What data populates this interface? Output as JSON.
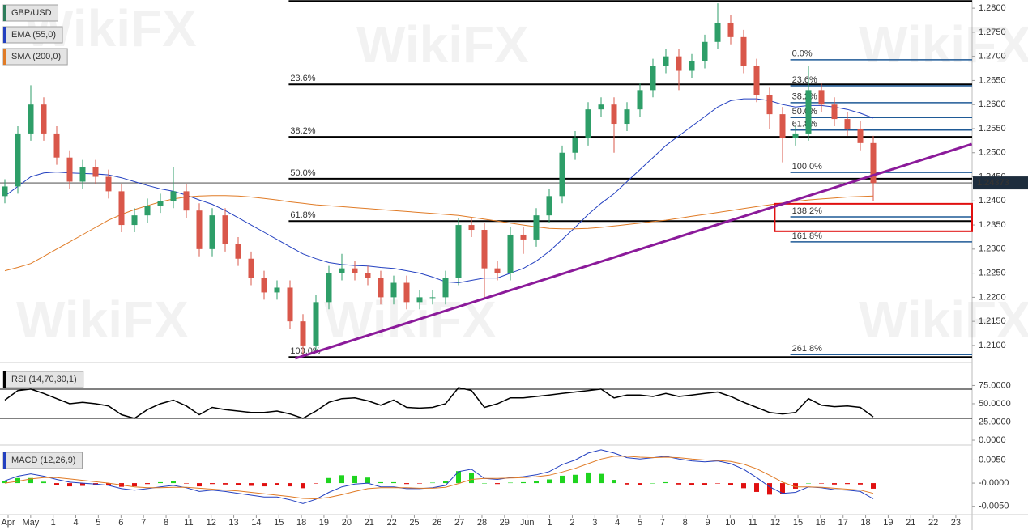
{
  "chart_data": [
    {
      "type": "candlestick",
      "title": "GBP/USD",
      "color": "#2e7d5b",
      "watermark": "WikiFX",
      "up_color": "#2e9e68",
      "down_color": "#d9574a",
      "open": [
        1.241,
        1.243,
        1.254,
        1.26,
        1.254,
        1.249,
        1.244,
        1.247,
        1.245,
        1.242,
        1.235,
        1.237,
        1.239,
        1.24,
        1.242,
        1.238,
        1.23,
        1.237,
        1.231,
        1.228,
        1.224,
        1.221,
        1.222,
        1.215,
        1.21,
        1.219,
        1.225,
        1.226,
        1.225,
        1.224,
        1.22,
        1.223,
        1.219,
        1.22,
        1.22,
        1.224,
        1.235,
        1.234,
        1.226,
        1.225,
        1.233,
        1.232,
        1.237,
        1.241,
        1.25,
        1.253,
        1.259,
        1.26,
        1.256,
        1.259,
        1.263,
        1.268,
        1.27,
        1.267,
        1.269,
        1.273,
        1.277,
        1.274,
        1.268,
        1.262,
        1.258,
        1.253,
        1.254,
        1.263,
        1.26,
        1.257,
        1.255,
        1.252
      ],
      "high": [
        1.2445,
        1.2555,
        1.264,
        1.2615,
        1.2555,
        1.2505,
        1.2485,
        1.2485,
        1.2465,
        1.2435,
        1.2385,
        1.2405,
        1.2415,
        1.247,
        1.2435,
        1.2395,
        1.2385,
        1.2385,
        1.2325,
        1.2295,
        1.2255,
        1.2235,
        1.2235,
        1.2165,
        1.2205,
        1.2265,
        1.229,
        1.2275,
        1.2265,
        1.2255,
        1.2245,
        1.2245,
        1.2215,
        1.2215,
        1.2255,
        1.2365,
        1.2365,
        1.2355,
        1.2275,
        1.2345,
        1.2345,
        1.2385,
        1.2425,
        1.2515,
        1.2545,
        1.2605,
        1.2615,
        1.2615,
        1.2605,
        1.2645,
        1.2695,
        1.2715,
        1.2715,
        1.2705,
        1.2745,
        1.281,
        1.2785,
        1.2755,
        1.2695,
        1.2635,
        1.2595,
        1.2555,
        1.268,
        1.2645,
        1.2615,
        1.2585,
        1.2565,
        1.2535
      ],
      "low": [
        1.2395,
        1.2415,
        1.2525,
        1.2525,
        1.2475,
        1.2425,
        1.2425,
        1.2435,
        1.2405,
        1.2335,
        1.2335,
        1.2355,
        1.2375,
        1.2385,
        1.2365,
        1.2285,
        1.2285,
        1.2295,
        1.2265,
        1.2225,
        1.2195,
        1.2195,
        1.2135,
        1.208,
        1.2085,
        1.2175,
        1.2235,
        1.2235,
        1.2225,
        1.2185,
        1.2185,
        1.2175,
        1.2175,
        1.2185,
        1.2185,
        1.2225,
        1.2325,
        1.22,
        1.2235,
        1.2235,
        1.229,
        1.2305,
        1.2355,
        1.2395,
        1.2485,
        1.2515,
        1.2575,
        1.25,
        1.2545,
        1.2575,
        1.2615,
        1.2665,
        1.263,
        1.2655,
        1.2675,
        1.2715,
        1.2725,
        1.2665,
        1.2605,
        1.255,
        1.248,
        1.2515,
        1.2525,
        1.2585,
        1.2555,
        1.2535,
        1.2505,
        1.24
      ],
      "close": [
        1.243,
        1.254,
        1.26,
        1.254,
        1.249,
        1.244,
        1.247,
        1.245,
        1.242,
        1.235,
        1.237,
        1.239,
        1.24,
        1.242,
        1.238,
        1.23,
        1.237,
        1.231,
        1.228,
        1.224,
        1.221,
        1.222,
        1.215,
        1.21,
        1.219,
        1.225,
        1.226,
        1.225,
        1.224,
        1.22,
        1.223,
        1.219,
        1.22,
        1.22,
        1.224,
        1.235,
        1.234,
        1.226,
        1.225,
        1.233,
        1.232,
        1.237,
        1.241,
        1.25,
        1.253,
        1.259,
        1.26,
        1.256,
        1.259,
        1.263,
        1.268,
        1.27,
        1.267,
        1.269,
        1.273,
        1.277,
        1.274,
        1.268,
        1.262,
        1.258,
        1.253,
        1.254,
        1.263,
        1.26,
        1.257,
        1.255,
        1.252,
        1.2437
      ],
      "series": [
        {
          "name": "EMA (55,0)",
          "color": "#2340c0",
          "values": [
            1.241,
            1.243,
            1.245,
            1.2458,
            1.246,
            1.2458,
            1.2457,
            1.2456,
            1.2454,
            1.2448,
            1.244,
            1.2432,
            1.2425,
            1.242,
            1.2412,
            1.2402,
            1.2393,
            1.238,
            1.2365,
            1.235,
            1.2335,
            1.232,
            1.2305,
            1.229,
            1.228,
            1.2272,
            1.2268,
            1.2266,
            1.2265,
            1.2262,
            1.226,
            1.2255,
            1.225,
            1.2242,
            1.2232,
            1.223,
            1.2235,
            1.224,
            1.224,
            1.225,
            1.226,
            1.2275,
            1.2295,
            1.232,
            1.2345,
            1.2372,
            1.2395,
            1.2415,
            1.244,
            1.2465,
            1.249,
            1.2515,
            1.2535,
            1.2555,
            1.2575,
            1.2595,
            1.2608,
            1.2612,
            1.2612,
            1.2608,
            1.26,
            1.2595,
            1.2598,
            1.2598,
            1.2595,
            1.259,
            1.2582,
            1.2572
          ]
        },
        {
          "name": "SMA (200,0)",
          "color": "#e07b26",
          "values": [
            1.2255,
            1.2262,
            1.227,
            1.2285,
            1.23,
            1.2315,
            1.233,
            1.2345,
            1.236,
            1.2372,
            1.2382,
            1.239,
            1.2398,
            1.2404,
            1.2408,
            1.241,
            1.2411,
            1.2411,
            1.241,
            1.2408,
            1.2405,
            1.2402,
            1.2398,
            1.2395,
            1.2392,
            1.239,
            1.2388,
            1.2386,
            1.2384,
            1.2382,
            1.238,
            1.2378,
            1.2376,
            1.2374,
            1.2372,
            1.237,
            1.2366,
            1.2362,
            1.2358,
            1.2354,
            1.235,
            1.2346,
            1.2343,
            1.2342,
            1.2342,
            1.2343,
            1.2345,
            1.2348,
            1.2351,
            1.2354,
            1.2357,
            1.236,
            1.2364,
            1.2368,
            1.2372,
            1.2376,
            1.238,
            1.2384,
            1.2388,
            1.2392,
            1.2396,
            1.2399,
            1.2402,
            1.2404,
            1.2406,
            1.2408,
            1.2409,
            1.241
          ]
        }
      ],
      "xlim": [
        -0.375,
        74.625
      ],
      "xticks": [
        {
          "value": 0.25,
          "label": "Apr"
        },
        {
          "value": 1.99,
          "label": "May"
        },
        {
          "value": 3.73,
          "label": "1"
        },
        {
          "value": 5.47,
          "label": "4"
        },
        {
          "value": 7.21,
          "label": "5"
        },
        {
          "value": 8.96,
          "label": "6"
        },
        {
          "value": 10.7,
          "label": "7"
        },
        {
          "value": 12.44,
          "label": "8"
        },
        {
          "value": 14.18,
          "label": "11"
        },
        {
          "value": 15.92,
          "label": "12"
        },
        {
          "value": 17.66,
          "label": "13"
        },
        {
          "value": 19.4,
          "label": "14"
        },
        {
          "value": 21.14,
          "label": "15"
        },
        {
          "value": 22.88,
          "label": "18"
        },
        {
          "value": 24.62,
          "label": "19"
        },
        {
          "value": 26.37,
          "label": "20"
        },
        {
          "value": 28.11,
          "label": "21"
        },
        {
          "value": 29.85,
          "label": "22"
        },
        {
          "value": 31.59,
          "label": "25"
        },
        {
          "value": 33.33,
          "label": "26"
        },
        {
          "value": 35.07,
          "label": "27"
        },
        {
          "value": 36.81,
          "label": "28"
        },
        {
          "value": 38.55,
          "label": "29"
        },
        {
          "value": 40.29,
          "label": "Jun"
        },
        {
          "value": 42.03,
          "label": "1"
        },
        {
          "value": 43.78,
          "label": "2"
        },
        {
          "value": 45.52,
          "label": "3"
        },
        {
          "value": 47.26,
          "label": "4"
        },
        {
          "value": 49.0,
          "label": "5"
        },
        {
          "value": 50.74,
          "label": "7"
        },
        {
          "value": 52.48,
          "label": "8"
        },
        {
          "value": 54.22,
          "label": "9"
        },
        {
          "value": 55.96,
          "label": "10"
        },
        {
          "value": 57.7,
          "label": "11"
        },
        {
          "value": 59.44,
          "label": "12"
        },
        {
          "value": 61.19,
          "label": "15"
        },
        {
          "value": 62.93,
          "label": "16"
        },
        {
          "value": 64.67,
          "label": "17"
        },
        {
          "value": 66.41,
          "label": "18"
        },
        {
          "value": 68.15,
          "label": "19"
        },
        {
          "value": 69.89,
          "label": "21"
        },
        {
          "value": 71.63,
          "label": "22"
        },
        {
          "value": 73.37,
          "label": "23"
        }
      ],
      "ylim": [
        1.2073,
        1.2817
      ],
      "yticks": [
        {
          "value": 1.28,
          "label": "1.2800"
        },
        {
          "value": 1.275,
          "label": "1.2750"
        },
        {
          "value": 1.27,
          "label": "1.2700"
        },
        {
          "value": 1.265,
          "label": "1.2650"
        },
        {
          "value": 1.26,
          "label": "1.2600"
        },
        {
          "value": 1.255,
          "label": "1.2550"
        },
        {
          "value": 1.25,
          "label": "1.2500"
        },
        {
          "value": 1.245,
          "label": "1.2450"
        },
        {
          "value": 1.24,
          "label": "1.2400"
        },
        {
          "value": 1.235,
          "label": "1.2350"
        },
        {
          "value": 1.23,
          "label": "1.2300"
        },
        {
          "value": 1.225,
          "label": "1.2250"
        },
        {
          "value": 1.22,
          "label": "1.2200"
        },
        {
          "value": 1.215,
          "label": "1.2150"
        },
        {
          "value": 1.21,
          "label": "1.2100"
        }
      ],
      "last_price": 1.24373,
      "fib_retracement": {
        "color": "#000000",
        "x_start": 21.9,
        "levels": [
          {
            "value": 1.2815,
            "label": null
          },
          {
            "value": 1.2642,
            "label": "23.6%"
          },
          {
            "value": 1.2533,
            "label": "38.2%"
          },
          {
            "value": 1.2446,
            "label": "50.0%"
          },
          {
            "value": 1.2358,
            "label": "61.8%"
          },
          {
            "value": 1.2076,
            "label": "100.0%"
          }
        ]
      },
      "fib_extension": {
        "color": "#1f5a96",
        "x_start": 60.6,
        "levels": [
          {
            "value": 1.2693,
            "label": "0.0%"
          },
          {
            "value": 1.2639,
            "label": "23.6%"
          },
          {
            "value": 1.2604,
            "label": "38.2%"
          },
          {
            "value": 1.2573,
            "label": "50.0%"
          },
          {
            "value": 1.2547,
            "label": "61.8%"
          },
          {
            "value": 1.2459,
            "label": "100.0%"
          },
          {
            "value": 1.2367,
            "label": "138.2%"
          },
          {
            "value": 1.2315,
            "label": "161.8%"
          },
          {
            "value": 1.2081,
            "label": "261.8%"
          }
        ]
      },
      "trendline": {
        "color": "#8b1a9a",
        "x": [
          22.4,
          74.6
        ],
        "y": [
          1.2073,
          1.2518
        ]
      },
      "zone": {
        "color": "#e01010",
        "x": [
          59.4,
          74.625
        ],
        "y": [
          1.2337,
          1.2394
        ]
      }
    },
    {
      "type": "line",
      "title": "RSI (14,70,30,1)",
      "color": "#000000",
      "values": [
        55,
        68,
        70,
        64,
        57,
        50,
        52,
        50,
        47,
        35,
        30,
        42,
        50,
        55,
        47,
        35,
        45,
        42,
        40,
        38,
        38,
        40,
        36,
        30,
        40,
        52,
        57,
        58,
        54,
        48,
        55,
        45,
        44,
        45,
        50,
        72,
        68,
        45,
        50,
        58,
        58,
        60,
        62,
        64,
        66,
        68,
        70,
        58,
        62,
        62,
        60,
        64,
        60,
        62,
        64,
        66,
        60,
        52,
        45,
        38,
        36,
        38,
        57,
        48,
        46,
        47,
        45,
        32
      ],
      "levels": [
        70,
        30
      ],
      "ylim": [
        -4.4,
        101
      ],
      "yticks": [
        {
          "value": 75,
          "label": "75.0000"
        },
        {
          "value": 50,
          "label": "50.0000"
        },
        {
          "value": 25,
          "label": "25.0000"
        },
        {
          "value": 0,
          "label": "0.0000"
        }
      ]
    },
    {
      "type": "macd",
      "title": "MACD (12,26,9)",
      "color": "#2340c0",
      "series": [
        {
          "color": "#2340c0",
          "values": [
            0.0005,
            0.0015,
            0.002,
            0.0015,
            0.0008,
            0.0002,
            0.0,
            -0.0002,
            -0.0005,
            -0.0012,
            -0.0015,
            -0.0012,
            -0.0008,
            -0.0005,
            -0.001,
            -0.0018,
            -0.0015,
            -0.0018,
            -0.0022,
            -0.0026,
            -0.003,
            -0.003,
            -0.0036,
            -0.0044,
            -0.0035,
            -0.002,
            -0.0008,
            -0.0002,
            0.0,
            -0.0008,
            -0.0008,
            -0.0012,
            -0.0012,
            -0.001,
            -0.0005,
            0.0025,
            0.003,
            0.001,
            0.0008,
            0.0012,
            0.0014,
            0.0018,
            0.0025,
            0.004,
            0.005,
            0.0065,
            0.0072,
            0.0065,
            0.0055,
            0.0052,
            0.0055,
            0.0058,
            0.0052,
            0.0048,
            0.0046,
            0.0048,
            0.0042,
            0.003,
            0.0012,
            -0.0008,
            -0.0022,
            -0.002,
            -0.0008,
            -0.001,
            -0.0014,
            -0.0015,
            -0.0018,
            -0.0034
          ]
        },
        {
          "color": "#e07b26",
          "values": [
            0.0,
            0.0004,
            0.0009,
            0.0012,
            0.0012,
            0.0009,
            0.0006,
            0.0003,
            0.0,
            -0.0004,
            -0.0008,
            -0.001,
            -0.001,
            -0.0009,
            -0.0009,
            -0.0011,
            -0.0013,
            -0.0015,
            -0.0017,
            -0.002,
            -0.0023,
            -0.0026,
            -0.0029,
            -0.0033,
            -0.0034,
            -0.0031,
            -0.0025,
            -0.0018,
            -0.0012,
            -0.001,
            -0.001,
            -0.001,
            -0.0011,
            -0.0011,
            -0.0009,
            -0.0001,
            0.0008,
            0.001,
            0.001,
            0.0011,
            0.0012,
            0.0014,
            0.0017,
            0.0024,
            0.0032,
            0.0042,
            0.0052,
            0.0058,
            0.0058,
            0.0056,
            0.0055,
            0.0056,
            0.0055,
            0.0052,
            0.005,
            0.0049,
            0.0047,
            0.0041,
            0.0031,
            0.0017,
            0.0002,
            -0.0008,
            -0.0008,
            -0.0009,
            -0.0011,
            -0.0013,
            -0.0015,
            -0.0022
          ]
        }
      ],
      "histogram": [
        0.0005,
        0.0011,
        0.0011,
        0.0003,
        -0.0004,
        -0.0007,
        -0.0006,
        -0.0005,
        -0.0005,
        -0.0008,
        -0.0007,
        -0.0002,
        0.0002,
        0.0004,
        -0.0001,
        -0.0007,
        -0.0002,
        -0.0003,
        -0.0005,
        -0.0006,
        -0.0007,
        -0.0004,
        -0.0007,
        -0.0011,
        -0.0001,
        0.0011,
        0.0017,
        0.0016,
        0.0012,
        0.0002,
        0.0002,
        -0.0002,
        -0.0001,
        0.0001,
        0.0004,
        0.0026,
        0.0022,
        0.0,
        -0.0002,
        0.0001,
        0.0002,
        0.0004,
        0.0008,
        0.0016,
        0.0018,
        0.0023,
        0.002,
        0.0007,
        -0.0003,
        -0.0004,
        0.0,
        0.0002,
        -0.0003,
        -0.0004,
        -0.0004,
        -0.0001,
        -0.0005,
        -0.0011,
        -0.0019,
        -0.0025,
        -0.0024,
        -0.0012,
        0.0,
        -0.0001,
        -0.0003,
        -0.0002,
        -0.0003,
        -0.0012
      ],
      "up_color": "#1fd41f",
      "down_color": "#e01010",
      "ylim": [
        -0.0075,
        0.0077
      ],
      "yticks": [
        {
          "value": 0.005,
          "label": "0.0050"
        },
        {
          "value": 0,
          "label": "-0.0000"
        },
        {
          "value": -0.005,
          "label": "-0.0050"
        }
      ]
    }
  ]
}
